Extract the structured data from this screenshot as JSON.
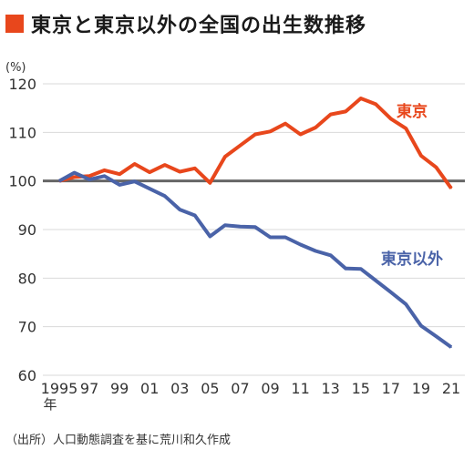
{
  "title": "東京と東京以外の全国の出生数推移",
  "source": "（出所）人口動態調査を基に荒川和久作成",
  "colors": {
    "tokyo": "#E8471C",
    "others": "#4A63A8",
    "accent": "#E8471C",
    "baseline": "#666666",
    "grid": "#d9d9d9"
  },
  "chart_data": {
    "type": "line",
    "ylabel": "(%)",
    "ylim": [
      60,
      120
    ],
    "yticks": [
      60,
      70,
      80,
      90,
      100,
      110,
      120
    ],
    "xlim": [
      1995,
      2021
    ],
    "x_tick_labels": [
      {
        "x": 1995,
        "label": "1995"
      },
      {
        "x": 1997,
        "label": "97"
      },
      {
        "x": 1999,
        "label": "99"
      },
      {
        "x": 2001,
        "label": "01"
      },
      {
        "x": 2003,
        "label": "03"
      },
      {
        "x": 2005,
        "label": "05"
      },
      {
        "x": 2007,
        "label": "07"
      },
      {
        "x": 2009,
        "label": "09"
      },
      {
        "x": 2011,
        "label": "11"
      },
      {
        "x": 2013,
        "label": "13"
      },
      {
        "x": 2015,
        "label": "15"
      },
      {
        "x": 2017,
        "label": "17"
      },
      {
        "x": 2019,
        "label": "19"
      },
      {
        "x": 2021,
        "label": "21"
      }
    ],
    "x_unit_label": "年",
    "baseline": 100,
    "x": [
      1995,
      1996,
      1997,
      1998,
      1999,
      2000,
      2001,
      2002,
      2003,
      2004,
      2005,
      2006,
      2007,
      2008,
      2009,
      2010,
      2011,
      2012,
      2013,
      2014,
      2015,
      2016,
      2017,
      2018,
      2019,
      2020,
      2021
    ],
    "series": [
      {
        "name": "東京",
        "color_key": "tokyo",
        "values": [
          100.0,
          100.8,
          101.0,
          102.2,
          101.4,
          103.5,
          101.8,
          103.3,
          101.9,
          102.6,
          99.6,
          105.0,
          107.3,
          109.6,
          110.2,
          111.8,
          109.6,
          111.0,
          113.7,
          114.3,
          117.0,
          115.8,
          112.8,
          110.8,
          105.2,
          102.8,
          98.5
        ]
      },
      {
        "name": "東京以外",
        "color_key": "others",
        "values": [
          100.0,
          101.7,
          100.3,
          101.0,
          99.2,
          99.9,
          98.4,
          96.9,
          94.1,
          92.9,
          88.6,
          90.9,
          90.6,
          90.5,
          88.4,
          88.4,
          86.9,
          85.6,
          84.7,
          82.0,
          81.9,
          79.5,
          77.1,
          74.6,
          70.2,
          68.0,
          65.8
        ]
      }
    ]
  }
}
